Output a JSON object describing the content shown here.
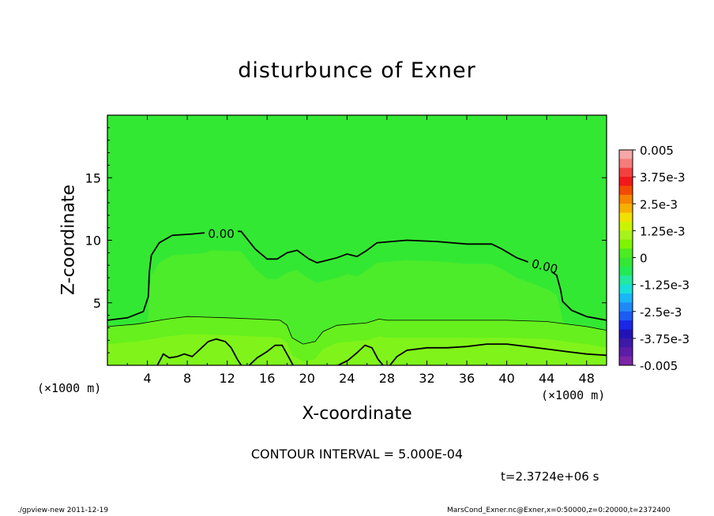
{
  "colors": {
    "background": "#ffffff",
    "field_base": "#33e833",
    "field_mid": "#4cec2a",
    "field_low": "#66f01e",
    "field_bottom": "#80f41a",
    "contour_line": "#000000"
  },
  "chart_data": {
    "type": "contour",
    "title": "disturbunce of Exner",
    "xlabel": "X-coordinate",
    "ylabel": "Z-coordinate",
    "x_unit_left": "(×1000 m)",
    "x_unit_right": "(×1000 m)",
    "xlim": [
      0,
      50
    ],
    "ylim": [
      0,
      20
    ],
    "x_ticks": [
      4,
      8,
      12,
      16,
      20,
      24,
      28,
      32,
      36,
      40,
      44,
      48
    ],
    "y_ticks": [
      5,
      10,
      15
    ],
    "grid": false,
    "contour_interval_text": "CONTOUR INTERVAL = 5.000E-04",
    "time_text": "t=2.3724e+06 s",
    "zero_contour_labels": [
      {
        "text": "0.00",
        "x": 11.4,
        "z": 10.5
      },
      {
        "text": "0.00",
        "x": 43.8,
        "z": 7.9
      }
    ],
    "zero_contour": [
      [
        0,
        3.6
      ],
      [
        2,
        3.8
      ],
      [
        3.6,
        4.3
      ],
      [
        4.1,
        5.5
      ],
      [
        4.2,
        7.5
      ],
      [
        4.4,
        8.8
      ],
      [
        5.2,
        9.8
      ],
      [
        6.5,
        10.4
      ],
      [
        8.5,
        10.5
      ],
      [
        9.8,
        10.6
      ],
      [
        10.4,
        10.8
      ],
      [
        13.4,
        10.7
      ],
      [
        14.8,
        9.3
      ],
      [
        16,
        8.5
      ],
      [
        17,
        8.5
      ],
      [
        18,
        9.0
      ],
      [
        19,
        9.2
      ],
      [
        20.2,
        8.5
      ],
      [
        21,
        8.2
      ],
      [
        22,
        8.4
      ],
      [
        23,
        8.6
      ],
      [
        24,
        8.9
      ],
      [
        25,
        8.7
      ],
      [
        26,
        9.2
      ],
      [
        27,
        9.8
      ],
      [
        30,
        10.0
      ],
      [
        33,
        9.9
      ],
      [
        36,
        9.7
      ],
      [
        38.5,
        9.7
      ],
      [
        39.5,
        9.3
      ],
      [
        41,
        8.6
      ],
      [
        42,
        8.3
      ],
      [
        44.3,
        7.6
      ],
      [
        45,
        7.2
      ],
      [
        45.4,
        6.0
      ],
      [
        45.6,
        5.1
      ],
      [
        46.5,
        4.4
      ],
      [
        48,
        3.9
      ],
      [
        50,
        3.6
      ]
    ],
    "thin_contour": [
      [
        0,
        3.1
      ],
      [
        3,
        3.3
      ],
      [
        6,
        3.7
      ],
      [
        8,
        3.9
      ],
      [
        12,
        3.8
      ],
      [
        15,
        3.7
      ],
      [
        17.3,
        3.6
      ],
      [
        18,
        3.2
      ],
      [
        18.5,
        2.2
      ],
      [
        19.6,
        1.7
      ],
      [
        20.8,
        1.9
      ],
      [
        21.6,
        2.7
      ],
      [
        23,
        3.2
      ],
      [
        26,
        3.4
      ],
      [
        27.2,
        3.7
      ],
      [
        28,
        3.6
      ],
      [
        32,
        3.6
      ],
      [
        36,
        3.6
      ],
      [
        40,
        3.6
      ],
      [
        44,
        3.5
      ],
      [
        48,
        3.1
      ],
      [
        50,
        2.8
      ]
    ],
    "lower_contours": [
      [
        [
          5,
          0
        ],
        [
          5.6,
          0.9
        ],
        [
          6.2,
          0.6
        ],
        [
          7,
          0.7
        ],
        [
          7.7,
          0.9
        ],
        [
          8.5,
          0.7
        ],
        [
          9.3,
          1.3
        ],
        [
          10.1,
          1.9
        ],
        [
          10.9,
          2.1
        ],
        [
          11.8,
          1.9
        ],
        [
          12.4,
          1.4
        ],
        [
          13,
          0.5
        ],
        [
          13.4,
          0
        ]
      ],
      [
        [
          14.2,
          0
        ],
        [
          15,
          0.6
        ],
        [
          16,
          1.1
        ],
        [
          16.8,
          1.6
        ],
        [
          17.5,
          1.6
        ],
        [
          18.2,
          0.6
        ],
        [
          18.6,
          0
        ]
      ],
      [
        [
          23.1,
          0
        ],
        [
          24.1,
          0.4
        ],
        [
          25,
          1.0
        ],
        [
          25.8,
          1.6
        ],
        [
          26.5,
          1.4
        ],
        [
          27.1,
          0.5
        ],
        [
          27.6,
          0
        ]
      ],
      [
        [
          28.3,
          0
        ],
        [
          29,
          0.7
        ],
        [
          30,
          1.2
        ],
        [
          32,
          1.4
        ],
        [
          34,
          1.4
        ],
        [
          36,
          1.5
        ],
        [
          38,
          1.7
        ],
        [
          40,
          1.7
        ],
        [
          42,
          1.5
        ],
        [
          44,
          1.3
        ],
        [
          46,
          1.1
        ],
        [
          48,
          0.9
        ],
        [
          50,
          0.8
        ]
      ]
    ]
  },
  "colorbar": {
    "labels": [
      "0.005",
      "3.75e-3",
      "2.5e-3",
      "1.25e-3",
      "0",
      "-1.25e-3",
      "-2.5e-3",
      "-3.75e-3",
      "-0.005"
    ],
    "bands_top_to_bottom": [
      "#f5a7a7",
      "#f67b7b",
      "#f43f3f",
      "#f21818",
      "#f44a00",
      "#f68400",
      "#f7b000",
      "#f1e100",
      "#c9f400",
      "#a6f21b",
      "#7ff400",
      "#4cec22",
      "#33e833",
      "#22ea55",
      "#22e8a0",
      "#18dfd8",
      "#18b6f7",
      "#1f8af7",
      "#1c5bf4",
      "#1a26e8",
      "#2213b8",
      "#3c1aa6",
      "#5c1ca8",
      "#7b25a8"
    ]
  },
  "footer": {
    "left": "./gpview-new   2011-12-19",
    "right": "MarsCond_Exner.nc@Exner,x=0:50000,z=0:20000,t=2372400"
  }
}
